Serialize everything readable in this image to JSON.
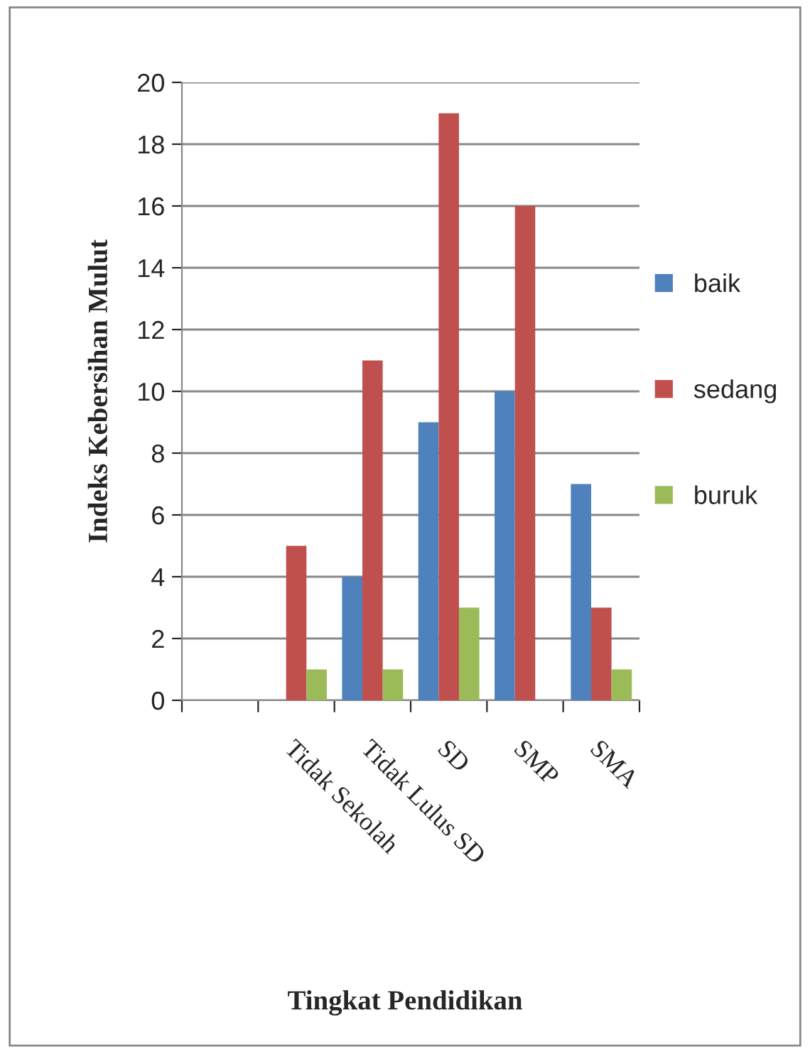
{
  "chart_data": {
    "type": "bar",
    "categories": [
      null,
      "Tidak Sekolah",
      "Tidak Lulus SD",
      "SD",
      "SMP",
      "SMA"
    ],
    "series": [
      {
        "name": "baik",
        "color": "#4f81bd",
        "values": [
          null,
          null,
          4,
          9,
          10,
          7
        ]
      },
      {
        "name": "sedang",
        "color": "#c0504d",
        "values": [
          null,
          5,
          11,
          19,
          16,
          3
        ]
      },
      {
        "name": "buruk",
        "color": "#9bbb59",
        "values": [
          null,
          1,
          1,
          3,
          null,
          1
        ]
      }
    ],
    "xlabel": "Tingkat Pendidikan",
    "ylabel": "Indeks Kebersihan Mulut",
    "ylim": [
      0,
      20
    ],
    "yticks": [
      0,
      2,
      4,
      6,
      8,
      10,
      12,
      14,
      16,
      18,
      20
    ],
    "grid": "y",
    "legend": "right"
  }
}
